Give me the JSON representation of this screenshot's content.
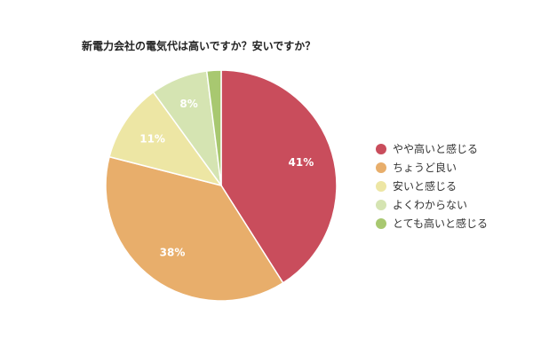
{
  "chart_data": {
    "type": "pie",
    "title": "新電力会社の電気代は高いですか？安いですか？",
    "categories": [
      "やや高いと感じる",
      "ちょうど良い",
      "安いと感じる",
      "よくわからない",
      "とても高いと感じる"
    ],
    "values": [
      41,
      38,
      11,
      8,
      2
    ],
    "data_labels": [
      "41%",
      "38%",
      "11%",
      "8%",
      ""
    ],
    "colors": [
      "#c94d5c",
      "#e8ae6b",
      "#ede6a4",
      "#d5e4b2",
      "#a8c870"
    ],
    "label_color": "#ffffff",
    "legend_position": "right",
    "start_angle": "top, clockwise"
  }
}
